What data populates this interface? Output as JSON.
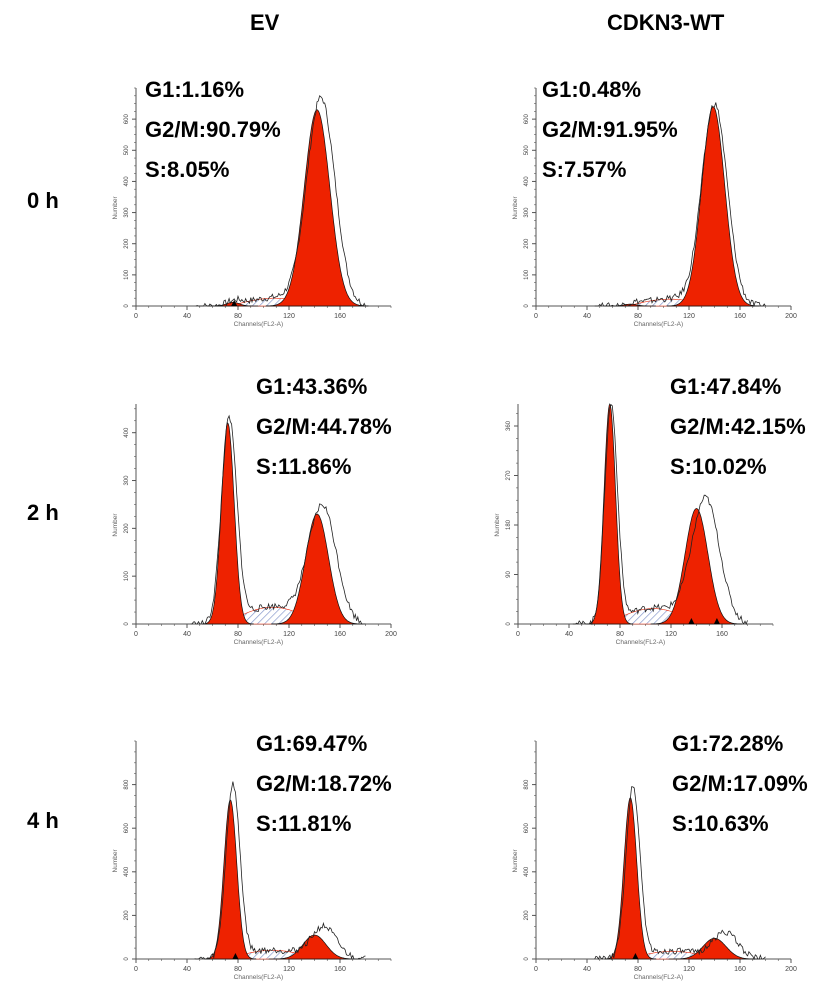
{
  "column_titles": [
    "EV",
    "CDKN3-WT"
  ],
  "row_labels": [
    "0 h",
    "2 h",
    "4 h"
  ],
  "axis": {
    "xlabel": "Channels(FL2-A)",
    "ylabel": "Number",
    "x_ticks": [
      0,
      40,
      80,
      120,
      160,
      200
    ]
  },
  "colors": {
    "fill_phase": "#ee2200",
    "s_phase_hatch": "#8899cc",
    "outline": "#222222",
    "axis": "#555555"
  },
  "chart_data": [
    {
      "type": "area",
      "row": "0 h",
      "column": "EV",
      "stats": {
        "g1": "G1:1.16%",
        "g2m": "G2/M:90.79%",
        "s": "S:8.05%"
      },
      "xlim": [
        0,
        200
      ],
      "ylim": [
        0,
        700
      ],
      "y_ticks": [
        0,
        100,
        200,
        300,
        400,
        500,
        600
      ],
      "x_ticks": [
        0,
        40,
        80,
        120,
        160
      ],
      "series": [
        {
          "peak": "g1",
          "center": 76,
          "sd": 5,
          "height": 12
        },
        {
          "peak": "g2m",
          "center": 142,
          "sd": 10,
          "height": 630
        }
      ],
      "s_phase": {
        "from": 82,
        "to": 135,
        "height": 25
      },
      "raw_peaks": [
        {
          "center": 77,
          "sd": 6,
          "height": 18
        },
        {
          "center": 145,
          "sd": 11,
          "height": 670
        }
      ],
      "markers": [
        77
      ]
    },
    {
      "type": "area",
      "row": "0 h",
      "column": "CDKN3-WT",
      "stats": {
        "g1": "G1:0.48%",
        "g2m": "G2/M:91.95%",
        "s": "S:7.57%"
      },
      "xlim": [
        0,
        200
      ],
      "ylim": [
        0,
        700
      ],
      "y_ticks": [
        0,
        100,
        200,
        300,
        400,
        500,
        600
      ],
      "x_ticks": [
        0,
        40,
        80,
        120,
        160,
        200
      ],
      "series": [
        {
          "peak": "g1",
          "center": 74,
          "sd": 5,
          "height": 6
        },
        {
          "peak": "g2m",
          "center": 139,
          "sd": 9,
          "height": 640
        }
      ],
      "s_phase": {
        "from": 80,
        "to": 130,
        "height": 22
      },
      "raw_peaks": [
        {
          "center": 76,
          "sd": 6,
          "height": 10
        },
        {
          "center": 140,
          "sd": 10,
          "height": 650
        }
      ],
      "markers": []
    },
    {
      "type": "area",
      "row": "2 h",
      "column": "EV",
      "stats": {
        "g1": "G1:43.36%",
        "g2m": "G2/M:44.78%",
        "s": "S:11.86%"
      },
      "xlim": [
        0,
        200
      ],
      "ylim": [
        0,
        460
      ],
      "y_ticks": [
        0,
        100,
        200,
        300,
        400
      ],
      "x_ticks": [
        0,
        40,
        80,
        120,
        160,
        200
      ],
      "series": [
        {
          "peak": "g1",
          "center": 72,
          "sd": 5,
          "height": 420
        },
        {
          "peak": "g2m",
          "center": 142,
          "sd": 9,
          "height": 230
        }
      ],
      "s_phase": {
        "from": 78,
        "to": 136,
        "height": 35
      },
      "raw_peaks": [
        {
          "center": 73,
          "sd": 6,
          "height": 430
        },
        {
          "center": 146,
          "sd": 11,
          "height": 250
        }
      ],
      "markers": []
    },
    {
      "type": "area",
      "row": "2 h",
      "column": "CDKN3-WT",
      "stats": {
        "g1": "G1:47.84%",
        "g2m": "G2/M:42.15%",
        "s": "S:10.02%"
      },
      "xlim": [
        0,
        200
      ],
      "ylim": [
        0,
        400
      ],
      "y_ticks": [
        0,
        90,
        180,
        270,
        360
      ],
      "x_ticks": [
        0,
        40,
        80,
        120,
        160
      ],
      "series": [
        {
          "peak": "g1",
          "center": 72,
          "sd": 4.5,
          "height": 400
        },
        {
          "peak": "g2m",
          "center": 140,
          "sd": 9,
          "height": 210
        }
      ],
      "s_phase": {
        "from": 78,
        "to": 134,
        "height": 28
      },
      "raw_peaks": [
        {
          "center": 73,
          "sd": 5,
          "height": 400
        },
        {
          "center": 147,
          "sd": 11,
          "height": 230
        }
      ],
      "markers": [
        136,
        156
      ]
    },
    {
      "type": "area",
      "row": "4 h",
      "column": "EV",
      "stats": {
        "g1": "G1:69.47%",
        "g2m": "G2/M:18.72%",
        "s": "S:11.81%"
      },
      "xlim": [
        0,
        200
      ],
      "ylim": [
        0,
        1000
      ],
      "y_ticks": [
        0,
        200,
        400,
        600,
        800
      ],
      "x_ticks": [
        0,
        40,
        80,
        120,
        160
      ],
      "series": [
        {
          "peak": "g1",
          "center": 74,
          "sd": 5,
          "height": 730
        },
        {
          "peak": "g2m",
          "center": 140,
          "sd": 9,
          "height": 110
        }
      ],
      "s_phase": {
        "from": 80,
        "to": 134,
        "height": 40
      },
      "raw_peaks": [
        {
          "center": 76,
          "sd": 5.5,
          "height": 800
        },
        {
          "center": 147,
          "sd": 10,
          "height": 150
        }
      ],
      "markers": [
        78
      ]
    },
    {
      "type": "area",
      "row": "4 h",
      "column": "CDKN3-WT",
      "stats": {
        "g1": "G1:72.28%",
        "g2m": "G2/M:17.09%",
        "s": "S:10.63%"
      },
      "xlim": [
        0,
        200
      ],
      "ylim": [
        0,
        1000
      ],
      "y_ticks": [
        0,
        200,
        400,
        600,
        800
      ],
      "x_ticks": [
        0,
        40,
        80,
        120,
        160,
        200
      ],
      "series": [
        {
          "peak": "g1",
          "center": 74,
          "sd": 5,
          "height": 740
        },
        {
          "peak": "g2m",
          "center": 140,
          "sd": 9,
          "height": 95
        }
      ],
      "s_phase": {
        "from": 80,
        "to": 134,
        "height": 35
      },
      "raw_peaks": [
        {
          "center": 76,
          "sd": 5.5,
          "height": 790
        },
        {
          "center": 148,
          "sd": 10,
          "height": 125
        }
      ],
      "markers": [
        78
      ]
    }
  ]
}
